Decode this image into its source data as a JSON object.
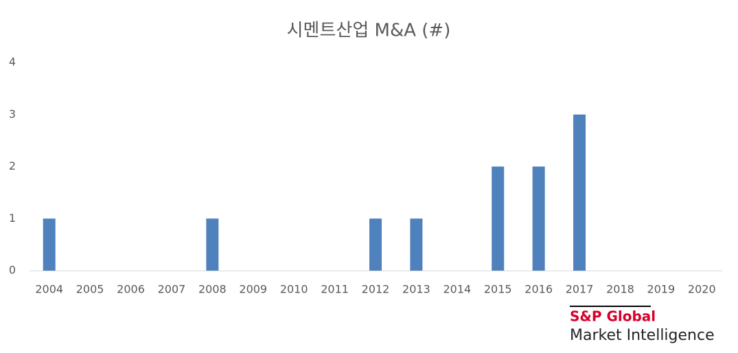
{
  "chart_data": {
    "type": "bar",
    "title": "시멘트산업 M&A (#)",
    "categories": [
      "2004",
      "2005",
      "2006",
      "2007",
      "2008",
      "2009",
      "2010",
      "2011",
      "2012",
      "2013",
      "2014",
      "2015",
      "2016",
      "2017",
      "2018",
      "2019",
      "2020"
    ],
    "values": [
      1,
      0,
      0,
      0,
      1,
      0,
      0,
      0,
      1,
      1,
      0,
      2,
      2,
      3,
      0,
      0,
      0
    ],
    "color": "#4f81bd",
    "ylim": [
      0,
      4
    ],
    "yticks": [
      0,
      1,
      2,
      3,
      4
    ],
    "grid": false
  },
  "logo": {
    "brand": "S&P Global",
    "tagline": "Market Intelligence"
  }
}
